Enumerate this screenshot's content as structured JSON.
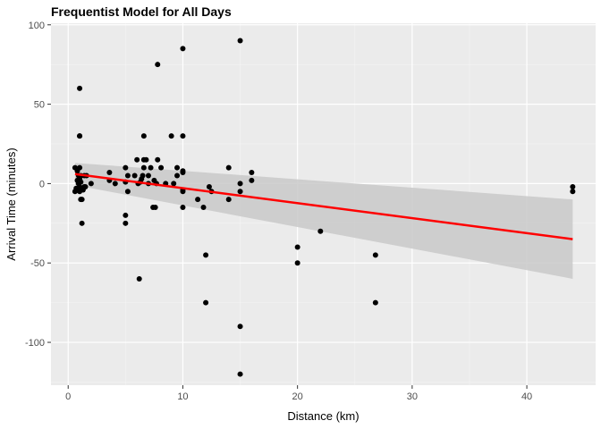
{
  "chart_data": {
    "type": "scatter",
    "title": "Frequentist Model for All Days",
    "xlabel": "Distance (km)",
    "ylabel": "Arrival Time (minutes)",
    "xlim": [
      -1.5,
      46
    ],
    "ylim": [
      -127,
      101
    ],
    "x_ticks": [
      0,
      10,
      20,
      30,
      40
    ],
    "x_tick_labels": [
      "0",
      "10",
      "20",
      "30",
      "40"
    ],
    "x_minor_ticks": [
      5,
      15,
      25,
      35
    ],
    "y_ticks": [
      -100,
      -50,
      0,
      50,
      100
    ],
    "y_tick_labels": [
      "-100",
      "-50",
      "0",
      "50",
      "100"
    ],
    "y_minor_ticks": [
      -125,
      -75,
      -25,
      25,
      75
    ],
    "grid": true,
    "background_color": "#ebebeb",
    "point_color": "#000000",
    "fit_color": "#ff0000",
    "ribbon_color": "#c9c9c9",
    "series": [
      {
        "type": "points",
        "points": [
          [
            0.6,
            -5
          ],
          [
            0.6,
            10
          ],
          [
            0.7,
            -3
          ],
          [
            0.8,
            8
          ],
          [
            0.8,
            2
          ],
          [
            0.9,
            -4
          ],
          [
            0.9,
            5
          ],
          [
            0.9,
            0
          ],
          [
            1.0,
            10
          ],
          [
            1.0,
            3
          ],
          [
            1.0,
            -2
          ],
          [
            1.0,
            -5
          ],
          [
            1.0,
            60
          ],
          [
            1.0,
            30
          ],
          [
            1.0,
            30
          ],
          [
            1.1,
            -10
          ],
          [
            1.1,
            1
          ],
          [
            1.1,
            5
          ],
          [
            1.2,
            -25
          ],
          [
            1.2,
            -10
          ],
          [
            1.3,
            -4
          ],
          [
            1.4,
            -2
          ],
          [
            1.4,
            5
          ],
          [
            1.5,
            -2
          ],
          [
            1.6,
            5
          ],
          [
            2.0,
            0
          ],
          [
            3.6,
            7
          ],
          [
            3.6,
            2
          ],
          [
            4.1,
            0
          ],
          [
            5.0,
            1
          ],
          [
            5.0,
            10
          ],
          [
            5.0,
            -20
          ],
          [
            5.0,
            -25
          ],
          [
            5.2,
            5
          ],
          [
            5.2,
            -5
          ],
          [
            5.8,
            5
          ],
          [
            6.0,
            15
          ],
          [
            6.1,
            0
          ],
          [
            6.2,
            -60
          ],
          [
            6.3,
            1
          ],
          [
            6.4,
            3
          ],
          [
            6.5,
            5
          ],
          [
            6.6,
            30
          ],
          [
            6.6,
            15
          ],
          [
            6.6,
            10
          ],
          [
            6.8,
            15
          ],
          [
            7.0,
            0
          ],
          [
            7.0,
            5
          ],
          [
            7.2,
            10
          ],
          [
            7.4,
            -15
          ],
          [
            7.5,
            2
          ],
          [
            7.6,
            -15
          ],
          [
            7.7,
            0
          ],
          [
            7.8,
            75
          ],
          [
            7.8,
            15
          ],
          [
            8.1,
            10
          ],
          [
            8.5,
            0
          ],
          [
            9.0,
            30
          ],
          [
            9.2,
            0
          ],
          [
            9.5,
            5
          ],
          [
            9.5,
            10
          ],
          [
            10.0,
            85
          ],
          [
            10.0,
            30
          ],
          [
            10.0,
            8
          ],
          [
            10.0,
            7
          ],
          [
            10.0,
            -4
          ],
          [
            10.0,
            -5
          ],
          [
            10.0,
            -15
          ],
          [
            11.3,
            -10
          ],
          [
            11.8,
            -15
          ],
          [
            12.0,
            -45
          ],
          [
            12.0,
            -75
          ],
          [
            12.3,
            -2
          ],
          [
            12.5,
            -5
          ],
          [
            14.0,
            10
          ],
          [
            14.0,
            -10
          ],
          [
            15.0,
            90
          ],
          [
            15.0,
            0
          ],
          [
            15.0,
            -5
          ],
          [
            15.0,
            -90
          ],
          [
            15.0,
            -120
          ],
          [
            16.0,
            7
          ],
          [
            16.0,
            2
          ],
          [
            20.0,
            -40
          ],
          [
            20.0,
            -50
          ],
          [
            22.0,
            -30
          ],
          [
            26.8,
            -45
          ],
          [
            26.8,
            -75
          ],
          [
            44.0,
            -2
          ],
          [
            44.0,
            -5
          ]
        ]
      },
      {
        "type": "fit",
        "x": [
          0.6,
          44.0
        ],
        "y": [
          6,
          -35
        ],
        "ribbon_lower": [
          -1,
          -60
        ],
        "ribbon_upper": [
          13,
          -10
        ]
      }
    ]
  }
}
